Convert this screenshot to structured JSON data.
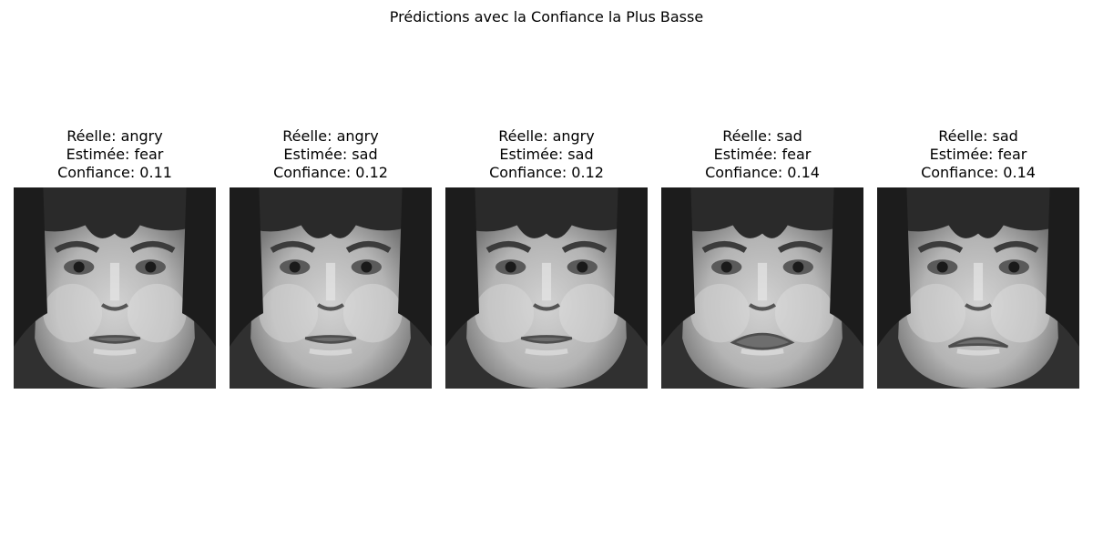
{
  "figure": {
    "title": "Prédictions avec la Confiance la Plus Basse"
  },
  "panels": [
    {
      "real": "Réelle: angry",
      "estimated": "Estimée: fear",
      "confidence": "Confiance: 0.11",
      "variant": "neutral"
    },
    {
      "real": "Réelle: angry",
      "estimated": "Estimée: sad",
      "confidence": "Confiance: 0.12",
      "variant": "neutral"
    },
    {
      "real": "Réelle: angry",
      "estimated": "Estimée: sad",
      "confidence": "Confiance: 0.12",
      "variant": "neutral"
    },
    {
      "real": "Réelle: sad",
      "estimated": "Estimée: fear",
      "confidence": "Confiance: 0.14",
      "variant": "pout"
    },
    {
      "real": "Réelle: sad",
      "estimated": "Estimée: fear",
      "confidence": "Confiance: 0.14",
      "variant": "frown"
    }
  ],
  "colors": {
    "background": "#ffffff",
    "text": "#000000"
  }
}
